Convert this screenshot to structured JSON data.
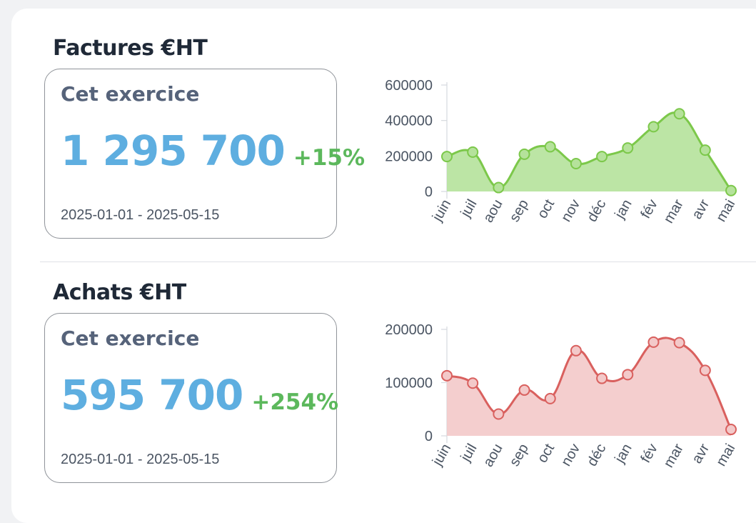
{
  "sections": [
    {
      "title": "Factures €HT",
      "stat": {
        "label": "Cet exercice",
        "value": "1 295 700",
        "change": "+15%",
        "period": "2025-01-01 - 2025-05-15"
      },
      "chart_data": {
        "type": "area",
        "categories": [
          "juin",
          "juil",
          "aou",
          "sep",
          "oct",
          "nov",
          "déc",
          "jan",
          "fév",
          "mar",
          "avr",
          "mai"
        ],
        "values": [
          197000,
          222000,
          22000,
          210000,
          252000,
          157000,
          197000,
          245000,
          365000,
          438000,
          233000,
          5000
        ],
        "ylim": [
          0,
          600000
        ],
        "yticks": [
          0,
          200000,
          400000,
          600000
        ],
        "ytick_labels": [
          "0",
          "200000",
          "400000",
          "600000"
        ],
        "line_color": "#7cc84a",
        "fill_color": "#b5e29b",
        "grid": false
      }
    },
    {
      "title": "Achats €HT",
      "stat": {
        "label": "Cet exercice",
        "value": "595 700",
        "change": "+254%",
        "period": "2025-01-01 - 2025-05-15"
      },
      "chart_data": {
        "type": "area",
        "categories": [
          "juin",
          "juil",
          "aou",
          "sep",
          "oct",
          "nov",
          "déc",
          "jan",
          "fév",
          "mar",
          "avr",
          "mai"
        ],
        "values": [
          113000,
          99000,
          41000,
          86000,
          70000,
          160000,
          108000,
          115000,
          176000,
          175000,
          123000,
          12000
        ],
        "ylim": [
          0,
          200000
        ],
        "yticks": [
          0,
          100000,
          200000
        ],
        "ytick_labels": [
          "0",
          "100000",
          "200000"
        ],
        "line_color": "#d9605e",
        "fill_color": "#f3c9c9",
        "grid": false
      }
    }
  ]
}
